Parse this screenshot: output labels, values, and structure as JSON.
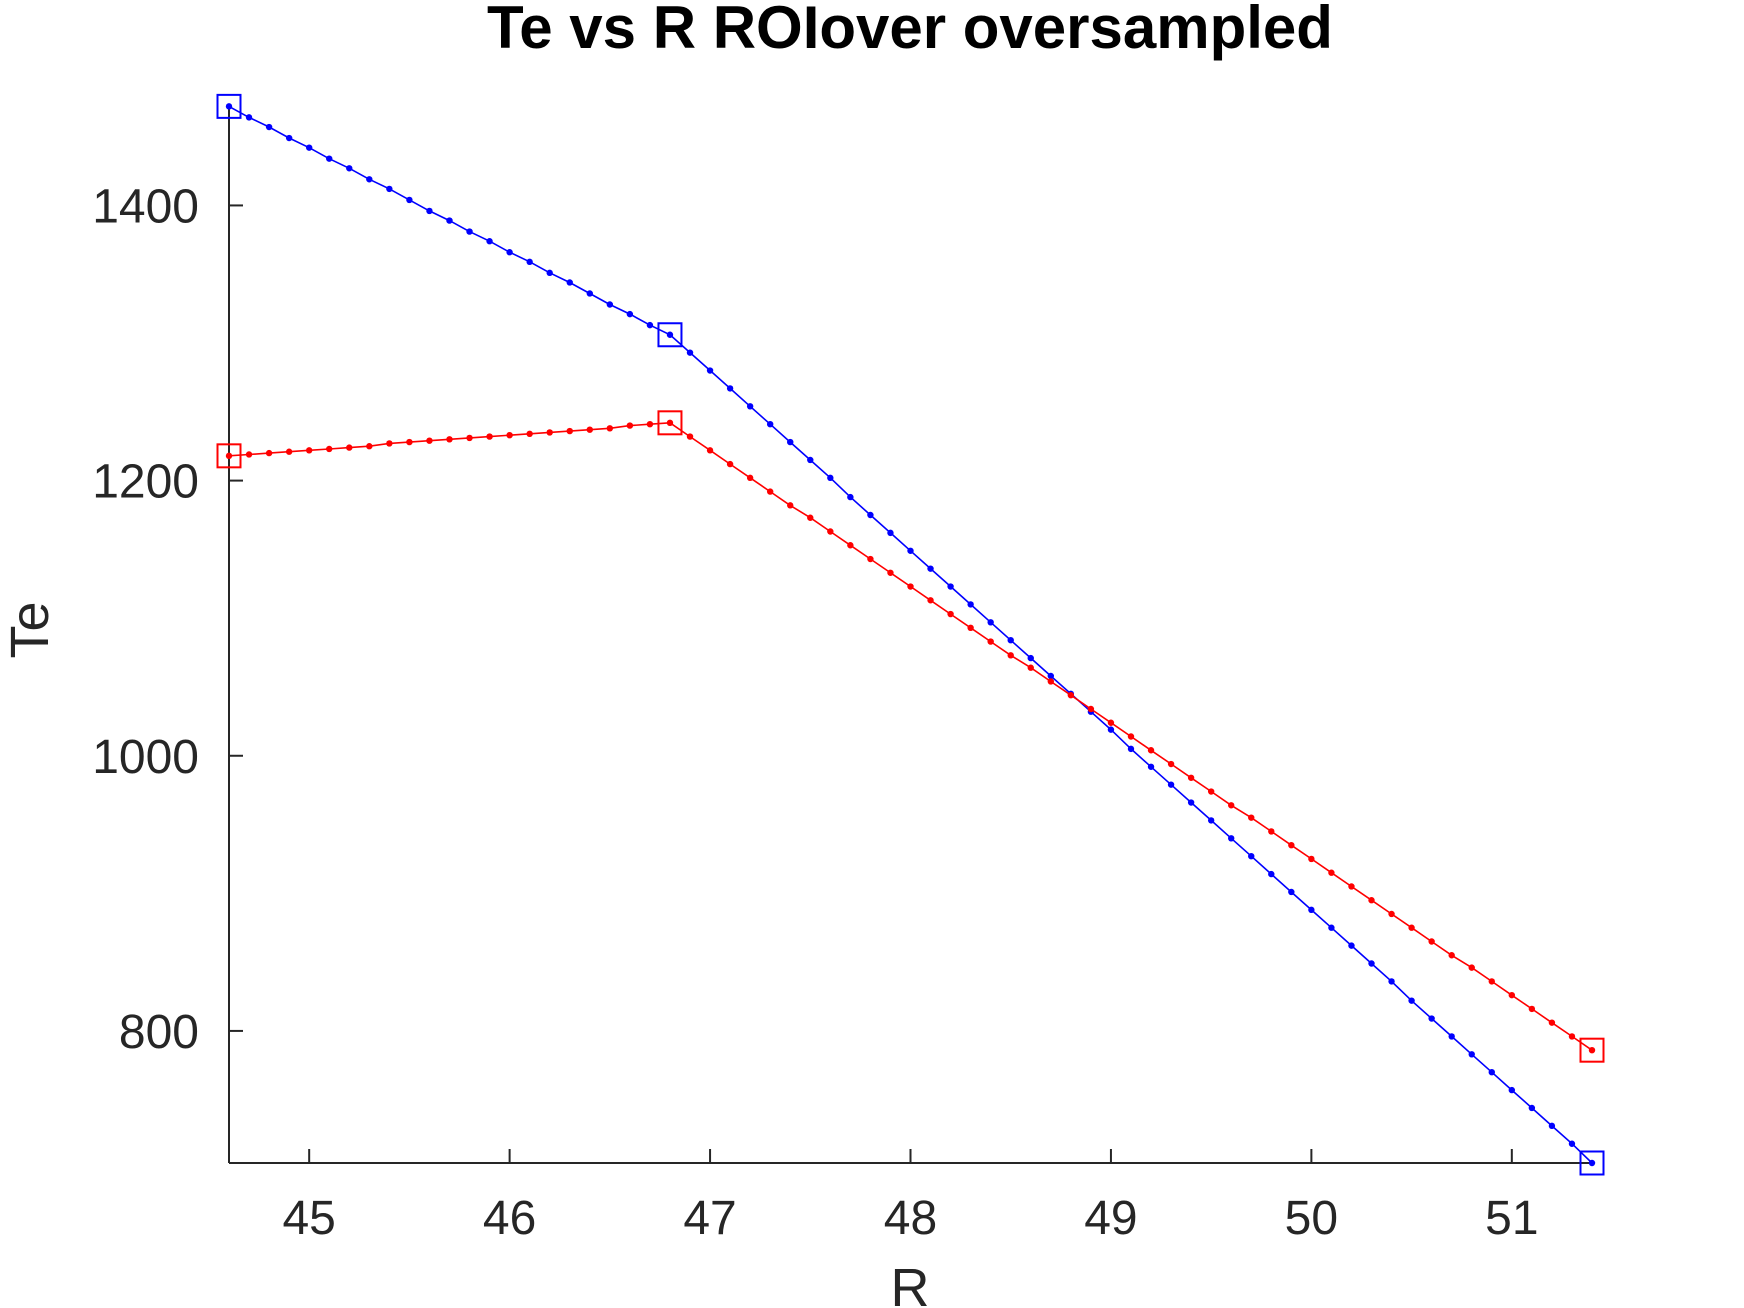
{
  "chart_data": {
    "type": "line",
    "title": "Te vs R ROIover oversampled",
    "xlabel": "R",
    "ylabel": "Te",
    "xlim": [
      44.6,
      51.4
    ],
    "ylim": [
      704,
      1473
    ],
    "xticks": [
      45,
      46,
      47,
      48,
      49,
      50,
      51
    ],
    "yticks": [
      800,
      1000,
      1200,
      1400
    ],
    "grid": false,
    "legend": "none",
    "series": [
      {
        "color": "#0000ff",
        "marker": "dot",
        "knots": {
          "x": [
            44.6,
            46.8,
            51.4
          ],
          "y": [
            1472,
            1306,
            704
          ]
        },
        "x": [
          44.6,
          44.7,
          44.8,
          44.9,
          45.0,
          45.1,
          45.2,
          45.3,
          45.4,
          45.5,
          45.6,
          45.7,
          45.8,
          45.9,
          46.0,
          46.1,
          46.2,
          46.3,
          46.4,
          46.5,
          46.6,
          46.7,
          46.8,
          46.9,
          47.0,
          47.1,
          47.2,
          47.3,
          47.4,
          47.5,
          47.6,
          47.7,
          47.8,
          47.9,
          48.0,
          48.1,
          48.2,
          48.3,
          48.4,
          48.5,
          48.6,
          48.7,
          48.8,
          48.9,
          49.0,
          49.1,
          49.2,
          49.3,
          49.4,
          49.5,
          49.6,
          49.7,
          49.8,
          49.9,
          50.0,
          50.1,
          50.2,
          50.3,
          50.4,
          50.5,
          50.6,
          50.7,
          50.8,
          50.9,
          51.0,
          51.1,
          51.2,
          51.3,
          51.4
        ],
        "y": [
          1472,
          1464,
          1457,
          1449,
          1442,
          1434,
          1427,
          1419,
          1412,
          1404,
          1396,
          1389,
          1381,
          1374,
          1366,
          1359,
          1351,
          1344,
          1336,
          1328,
          1321,
          1313,
          1306,
          1293,
          1280,
          1267,
          1254,
          1241,
          1228,
          1215,
          1202,
          1188,
          1175,
          1162,
          1149,
          1136,
          1123,
          1110,
          1097,
          1084,
          1071,
          1058,
          1045,
          1032,
          1019,
          1005,
          992,
          979,
          966,
          953,
          940,
          927,
          914,
          901,
          888,
          875,
          862,
          849,
          836,
          822,
          809,
          796,
          783,
          770,
          757,
          744,
          731,
          718,
          704
        ]
      },
      {
        "color": "#ff0000",
        "marker": "dot",
        "knots": {
          "x": [
            44.6,
            46.8,
            51.4
          ],
          "y": [
            1218,
            1242,
            786
          ]
        },
        "x": [
          44.6,
          44.7,
          44.8,
          44.9,
          45.0,
          45.1,
          45.2,
          45.3,
          45.4,
          45.5,
          45.6,
          45.7,
          45.8,
          45.9,
          46.0,
          46.1,
          46.2,
          46.3,
          46.4,
          46.5,
          46.6,
          46.7,
          46.8,
          46.9,
          47.0,
          47.1,
          47.2,
          47.3,
          47.4,
          47.5,
          47.6,
          47.7,
          47.8,
          47.9,
          48.0,
          48.1,
          48.2,
          48.3,
          48.4,
          48.5,
          48.6,
          48.7,
          48.8,
          48.9,
          49.0,
          49.1,
          49.2,
          49.3,
          49.4,
          49.5,
          49.6,
          49.7,
          49.8,
          49.9,
          50.0,
          50.1,
          50.2,
          50.3,
          50.4,
          50.5,
          50.6,
          50.7,
          50.8,
          50.9,
          51.0,
          51.1,
          51.2,
          51.3,
          51.4
        ],
        "y": [
          1218,
          1219,
          1220,
          1221,
          1222,
          1223,
          1224,
          1225,
          1227,
          1228,
          1229,
          1230,
          1231,
          1232,
          1233,
          1234,
          1235,
          1236,
          1237,
          1238,
          1240,
          1241,
          1242,
          1232,
          1222,
          1212,
          1202,
          1192,
          1182,
          1173,
          1163,
          1153,
          1143,
          1133,
          1123,
          1113,
          1103,
          1093,
          1083,
          1073,
          1064,
          1054,
          1044,
          1034,
          1024,
          1014,
          1004,
          994,
          984,
          974,
          964,
          955,
          945,
          935,
          925,
          915,
          905,
          895,
          885,
          875,
          865,
          855,
          846,
          836,
          826,
          816,
          806,
          796,
          786
        ]
      }
    ]
  }
}
